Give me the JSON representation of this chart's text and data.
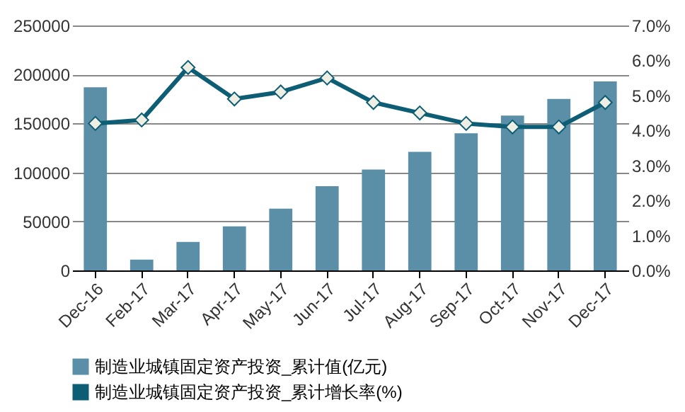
{
  "chart_data": {
    "type": "bar",
    "categories": [
      "Dec-16",
      "Feb-17",
      "Mar-17",
      "Apr-17",
      "May-17",
      "Jun-17",
      "Jul-17",
      "Aug-17",
      "Sep-17",
      "Oct-17",
      "Nov-17",
      "Dec-17"
    ],
    "series": [
      {
        "name": "制造业城镇固定资产投资_累计值(亿元)",
        "color": "#5b8fa8",
        "values": [
          187000,
          11000,
          29000,
          45000,
          63000,
          86000,
          103000,
          121000,
          140000,
          158000,
          175000,
          193000
        ]
      },
      {
        "name": "制造业城镇固定资产投资_累计增长率(%)",
        "type": "line",
        "axis": "y2",
        "color": "#0d5e75",
        "marker": "diamond",
        "values": [
          4.2,
          4.3,
          5.8,
          4.9,
          5.1,
          5.5,
          4.8,
          4.5,
          4.2,
          4.1,
          4.1,
          4.8
        ]
      }
    ],
    "ylim": [
      0,
      250000
    ],
    "yticks": [
      0,
      50000,
      100000,
      150000,
      200000,
      250000
    ],
    "y2lim": [
      0,
      7
    ],
    "y2ticks": [
      {
        "value": 0,
        "label": "0.0%"
      },
      {
        "value": 1,
        "label": "1.0%"
      },
      {
        "value": 2,
        "label": "2.0%"
      },
      {
        "value": 3,
        "label": "3.0%"
      },
      {
        "value": 4,
        "label": "4.0%"
      },
      {
        "value": 5,
        "label": "5.0%"
      },
      {
        "value": 6,
        "label": "6.0%"
      },
      {
        "value": 7,
        "label": "7.0%"
      }
    ],
    "grid": "y",
    "legend": "bottom"
  }
}
